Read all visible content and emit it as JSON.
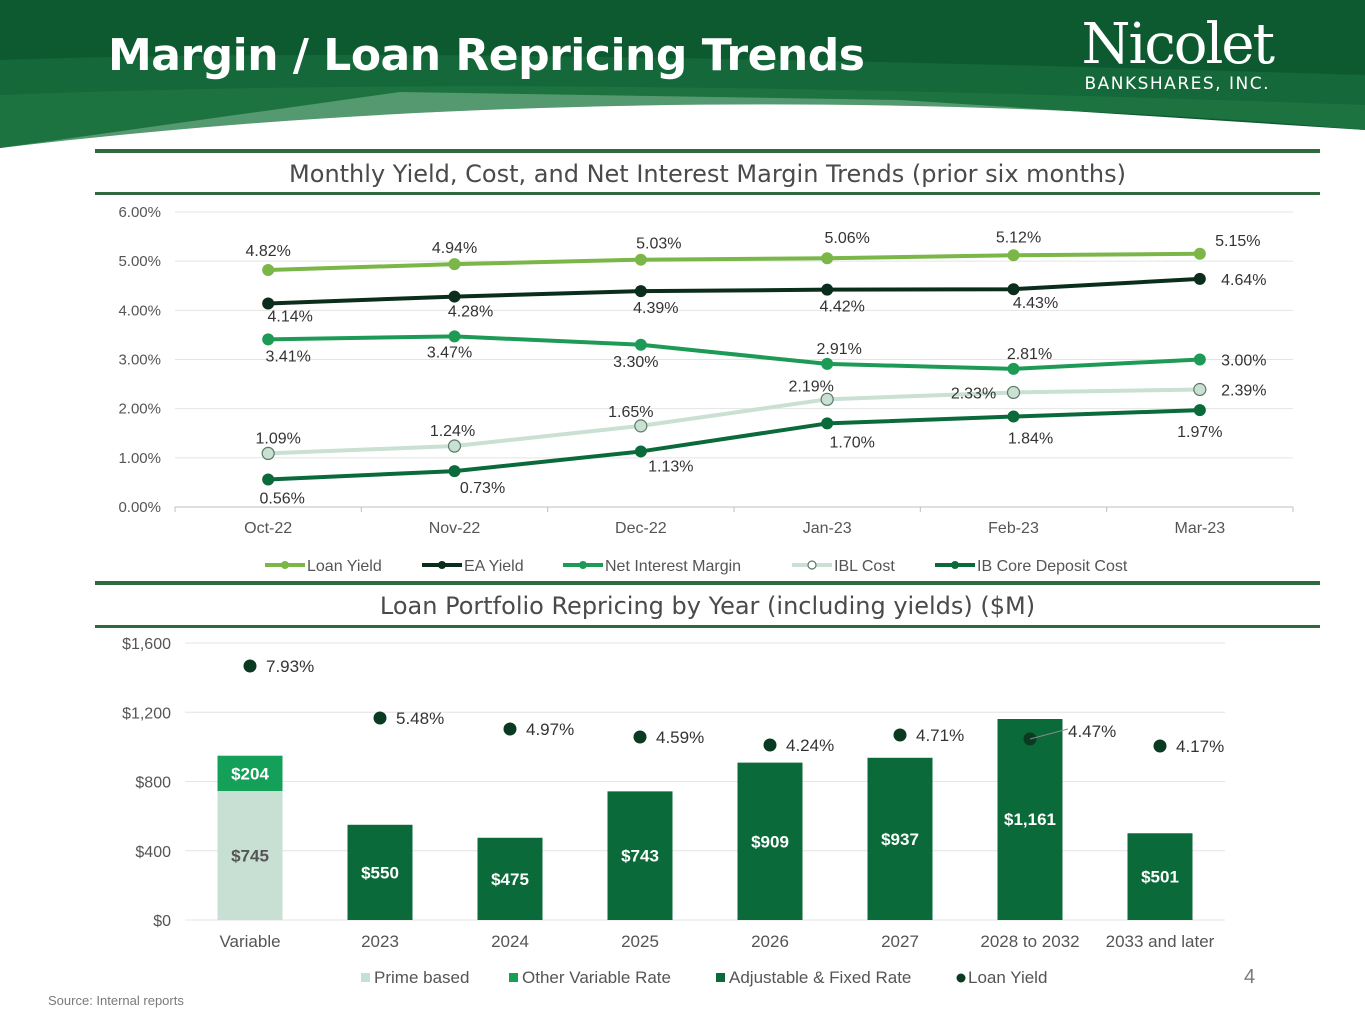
{
  "header": {
    "title": "Margin / Loan Repricing Trends",
    "logo_name": "Nicolet",
    "logo_sub": "BANKSHARES, INC."
  },
  "colors": {
    "banner_dark": "#0e5a30",
    "banner_mid": "#1f7a3e",
    "rule": "#2e6a3e",
    "loan_yield": "#7ab648",
    "ea_yield": "#0b2d1b",
    "net_interest_margin": "#1e9a57",
    "ibl_cost": "#c9e0d3",
    "ib_core_deposit_cost": "#0b6a3a",
    "prime_based": "#c8e0d4",
    "other_variable_rate": "#15a05a",
    "adjustable_fixed_rate": "#0b6a3a",
    "yield_dot": "#0a3a22"
  },
  "chart_data": [
    {
      "type": "line",
      "title": "Monthly Yield, Cost, and Net Interest Margin Trends (prior six months)",
      "categories": [
        "Oct-22",
        "Nov-22",
        "Dec-22",
        "Jan-23",
        "Feb-23",
        "Mar-23"
      ],
      "ylim": [
        0,
        6
      ],
      "yticks": [
        "0.00%",
        "1.00%",
        "2.00%",
        "3.00%",
        "4.00%",
        "5.00%",
        "6.00%"
      ],
      "series": [
        {
          "name": "Loan Yield",
          "color_key": "loan_yield",
          "values": [
            4.82,
            4.94,
            5.03,
            5.06,
            5.12,
            5.15
          ],
          "labels": [
            "4.82%",
            "4.94%",
            "5.03%",
            "5.06%",
            "5.12%",
            "5.15%"
          ]
        },
        {
          "name": "EA Yield",
          "color_key": "ea_yield",
          "values": [
            4.14,
            4.28,
            4.39,
            4.42,
            4.43,
            4.64
          ],
          "labels": [
            "4.14%",
            "4.28%",
            "4.39%",
            "4.42%",
            "4.43%",
            "4.64%"
          ]
        },
        {
          "name": "Net Interest Margin",
          "color_key": "net_interest_margin",
          "values": [
            3.41,
            3.47,
            3.3,
            2.91,
            2.81,
            3.0
          ],
          "labels": [
            "3.41%",
            "3.47%",
            "3.30%",
            "2.91%",
            "2.81%",
            "3.00%"
          ]
        },
        {
          "name": "IBL Cost",
          "color_key": "ibl_cost",
          "hollow": true,
          "values": [
            1.09,
            1.24,
            1.65,
            2.19,
            2.33,
            2.39
          ],
          "labels": [
            "1.09%",
            "1.24%",
            "1.65%",
            "2.19%",
            "2.33%",
            "2.39%"
          ]
        },
        {
          "name": "IB Core Deposit Cost",
          "color_key": "ib_core_deposit_cost",
          "values": [
            0.56,
            0.73,
            1.13,
            1.7,
            1.84,
            1.97
          ],
          "labels": [
            "0.56%",
            "0.73%",
            "1.13%",
            "1.70%",
            "1.84%",
            "1.97%"
          ]
        }
      ]
    },
    {
      "type": "bar",
      "stacked": true,
      "title": "Loan Portfolio Repricing by Year (including yields) ($M)",
      "categories": [
        "Variable",
        "2023",
        "2024",
        "2025",
        "2026",
        "2027",
        "2028 to 2032",
        "2033 and later"
      ],
      "ylim": [
        0,
        1600
      ],
      "yticks": [
        "$0",
        "$400",
        "$800",
        "$1,200",
        "$1,600"
      ],
      "series": [
        {
          "name": "Prime based",
          "color_key": "prime_based",
          "values": [
            745,
            0,
            0,
            0,
            0,
            0,
            0,
            0
          ],
          "labels": [
            "$745",
            "",
            "",
            "",
            "",
            "",
            "",
            ""
          ]
        },
        {
          "name": "Other Variable Rate",
          "color_key": "other_variable_rate",
          "values": [
            204,
            0,
            0,
            0,
            0,
            0,
            0,
            0
          ],
          "labels": [
            "$204",
            "",
            "",
            "",
            "",
            "",
            "",
            ""
          ]
        },
        {
          "name": "Adjustable & Fixed Rate",
          "color_key": "adjustable_fixed_rate",
          "values": [
            0,
            550,
            475,
            743,
            909,
            937,
            1161,
            501
          ],
          "labels": [
            "",
            "$550",
            "$475",
            "$743",
            "$909",
            "$937",
            "$1,161",
            "$501"
          ]
        }
      ],
      "loan_yield": {
        "name": "Loan Yield",
        "values": [
          7.93,
          5.48,
          4.97,
          4.59,
          4.24,
          4.71,
          4.47,
          4.17
        ],
        "labels": [
          "7.93%",
          "5.48%",
          "4.97%",
          "4.59%",
          "4.24%",
          "4.71%",
          "4.47%",
          "4.17%"
        ]
      }
    }
  ],
  "footer": {
    "page_number": "4",
    "source": "Source: Internal reports"
  }
}
